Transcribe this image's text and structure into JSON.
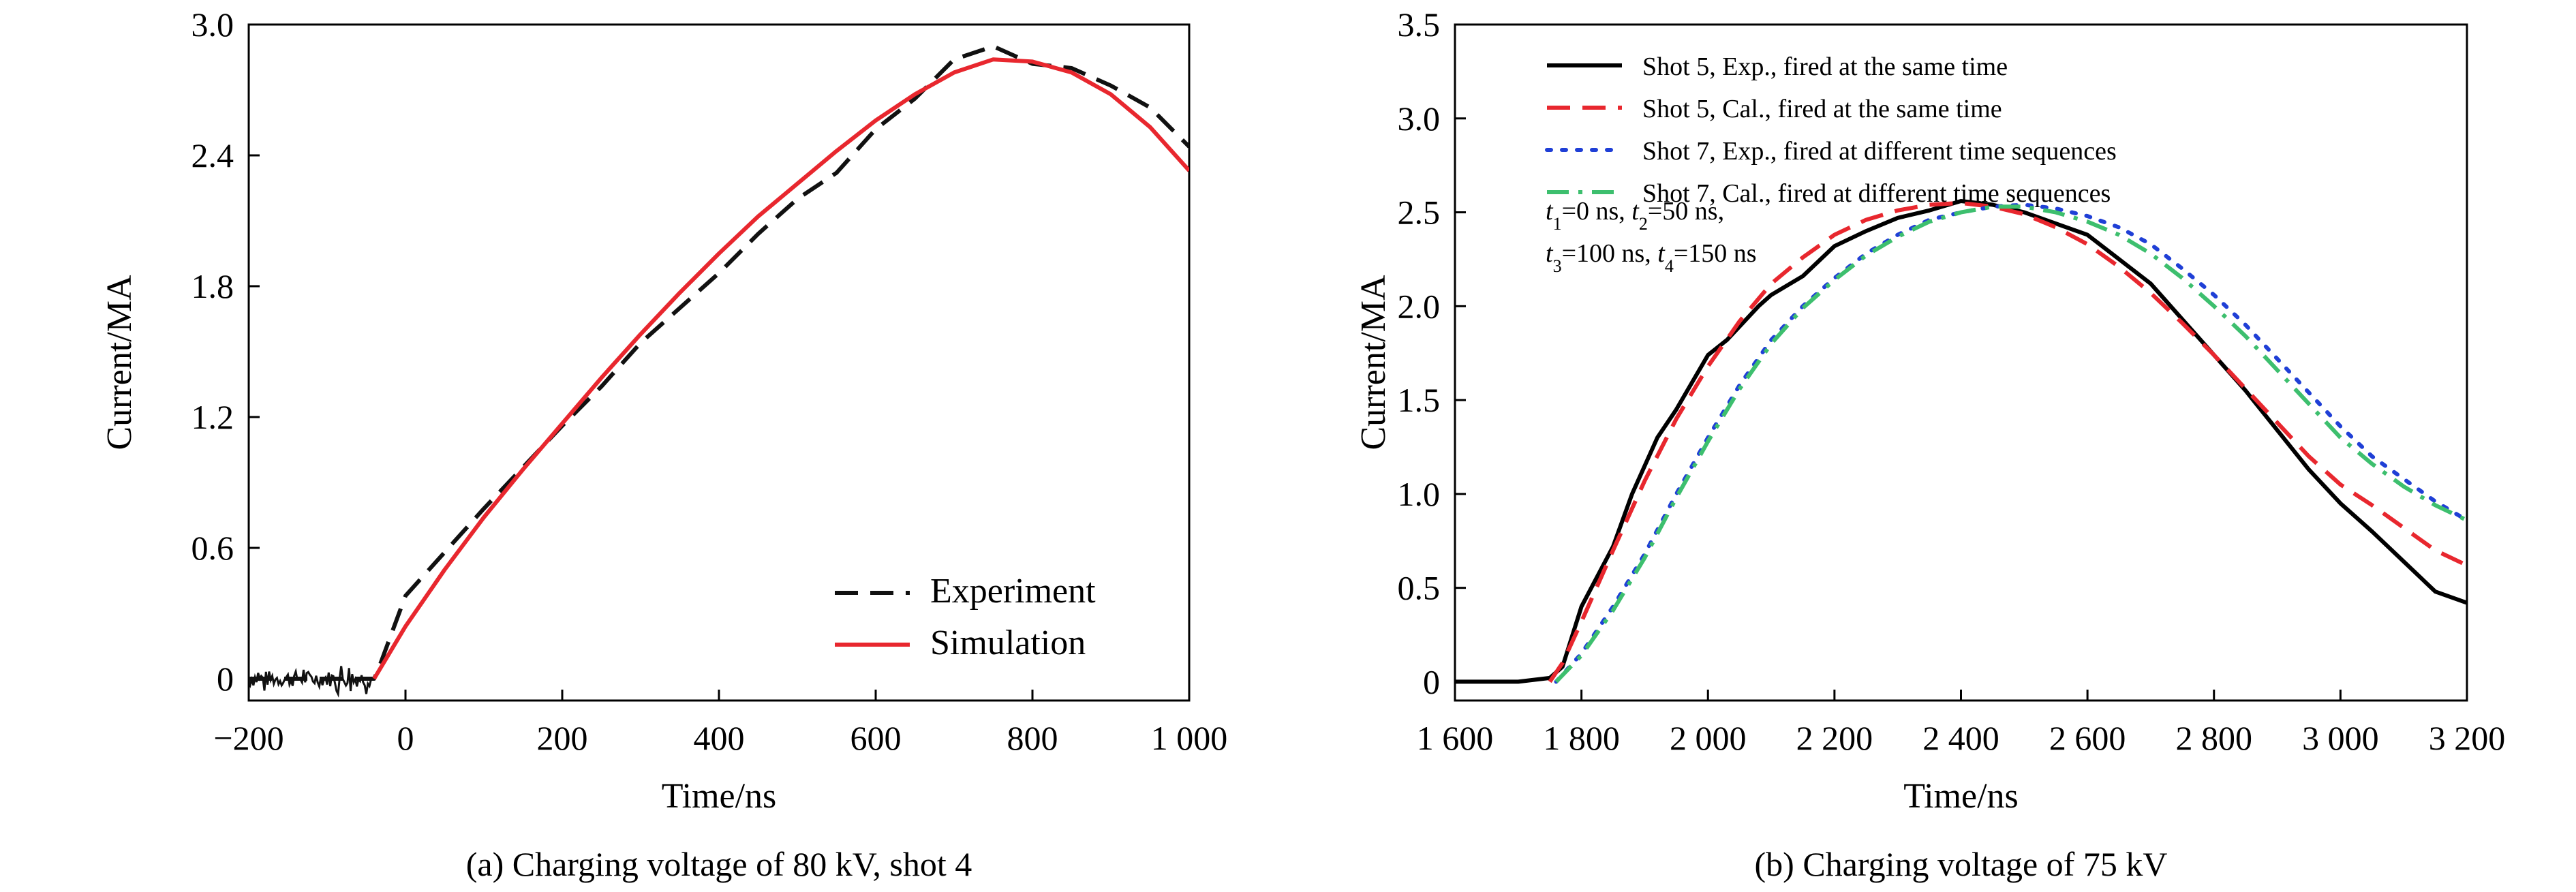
{
  "chart_data": [
    {
      "id": "a",
      "type": "line",
      "caption": "(a) Charging voltage of 80 kV, shot 4",
      "xlabel": "Time/ns",
      "ylabel": "Current/MA",
      "xlim": [
        -200,
        1000
      ],
      "ylim": [
        -0.1,
        3.0
      ],
      "xticks": [
        -200,
        0,
        200,
        400,
        600,
        800,
        1000
      ],
      "xtick_labels": [
        "−200",
        "0",
        "200",
        "400",
        "600",
        "800",
        "1 000"
      ],
      "yticks": [
        0,
        0.6,
        1.2,
        1.8,
        2.4,
        3.0
      ],
      "ytick_labels": [
        "0",
        "0.6",
        "1.2",
        "1.8",
        "2.4",
        "3.0"
      ],
      "legend_position": "bottom-right",
      "series": [
        {
          "name": "Experiment",
          "color": "#111111",
          "dash": "dashed",
          "x": [
            -200,
            -40,
            -35,
            0,
            50,
            100,
            150,
            200,
            250,
            300,
            350,
            400,
            450,
            500,
            550,
            600,
            650,
            700,
            750,
            800,
            850,
            900,
            950,
            1000
          ],
          "y": [
            0.0,
            0.0,
            0.04,
            0.38,
            0.58,
            0.78,
            0.97,
            1.16,
            1.34,
            1.54,
            1.7,
            1.86,
            2.04,
            2.2,
            2.32,
            2.52,
            2.66,
            2.84,
            2.9,
            2.82,
            2.8,
            2.72,
            2.62,
            2.44
          ]
        },
        {
          "name": "Simulation",
          "color": "#e8272e",
          "dash": "solid",
          "x": [
            -40,
            0,
            50,
            100,
            150,
            200,
            250,
            300,
            350,
            400,
            450,
            500,
            550,
            600,
            650,
            700,
            750,
            800,
            850,
            900,
            950,
            1000
          ],
          "y": [
            0.0,
            0.24,
            0.5,
            0.74,
            0.96,
            1.17,
            1.38,
            1.58,
            1.77,
            1.95,
            2.12,
            2.27,
            2.42,
            2.56,
            2.68,
            2.78,
            2.84,
            2.83,
            2.78,
            2.68,
            2.53,
            2.33
          ]
        }
      ],
      "noise_trace": {
        "color": "#111111",
        "x_range": [
          -200,
          -40
        ],
        "baseline": 0.0,
        "amplitude": 0.06
      }
    },
    {
      "id": "b",
      "type": "line",
      "caption": "(b) Charging voltage of 75 kV",
      "xlabel": "Time/ns",
      "ylabel": "Current/MA",
      "xlim": [
        1600,
        3200
      ],
      "ylim": [
        -0.1,
        3.5
      ],
      "xticks": [
        1600,
        1800,
        2000,
        2200,
        2400,
        2600,
        2800,
        3000,
        3200
      ],
      "xtick_labels": [
        "1 600",
        "1 800",
        "2 000",
        "2 200",
        "2 400",
        "2 600",
        "2 800",
        "3 000",
        "3 200"
      ],
      "yticks": [
        0,
        0.5,
        1.0,
        1.5,
        2.0,
        2.5,
        3.0,
        3.5
      ],
      "ytick_labels": [
        "0",
        "0.5",
        "1.0",
        "1.5",
        "2.0",
        "2.5",
        "3.0",
        "3.5"
      ],
      "legend_position": "top-left",
      "annotation": [
        {
          "parts": [
            [
              "t",
              "i"
            ],
            [
              "1",
              "sub"
            ],
            [
              "=0 ns, ",
              "n"
            ],
            [
              "t",
              "i"
            ],
            [
              "2",
              "sub"
            ],
            [
              "=50 ns,",
              "n"
            ]
          ]
        },
        {
          "parts": [
            [
              "t",
              "i"
            ],
            [
              "3",
              "sub"
            ],
            [
              "=100 ns, ",
              "n"
            ],
            [
              "t",
              "i"
            ],
            [
              "4",
              "sub"
            ],
            [
              "=150 ns",
              "n"
            ]
          ]
        }
      ],
      "series": [
        {
          "name": "Shot 5, Exp., fired at the same time",
          "color": "#000000",
          "dash": "solid",
          "x": [
            1600,
            1700,
            1750,
            1770,
            1800,
            1850,
            1880,
            1920,
            1950,
            2000,
            2030,
            2080,
            2100,
            2150,
            2200,
            2250,
            2300,
            2350,
            2400,
            2450,
            2500,
            2550,
            2600,
            2650,
            2700,
            2750,
            2800,
            2850,
            2900,
            2950,
            3000,
            3050,
            3100,
            3150,
            3200
          ],
          "y": [
            0.0,
            0.0,
            0.02,
            0.08,
            0.4,
            0.72,
            1.0,
            1.3,
            1.45,
            1.74,
            1.82,
            2.0,
            2.06,
            2.16,
            2.32,
            2.4,
            2.47,
            2.51,
            2.56,
            2.54,
            2.5,
            2.44,
            2.38,
            2.25,
            2.12,
            1.93,
            1.74,
            1.55,
            1.34,
            1.13,
            0.95,
            0.8,
            0.64,
            0.48,
            0.42
          ]
        },
        {
          "name": "Shot 5, Cal., fired at the same time",
          "color": "#e8272e",
          "dash": "dashed",
          "x": [
            1750,
            1770,
            1800,
            1850,
            1900,
            1950,
            2000,
            2050,
            2100,
            2150,
            2200,
            2250,
            2300,
            2350,
            2400,
            2450,
            2500,
            2550,
            2600,
            2650,
            2700,
            2750,
            2800,
            2850,
            2900,
            2950,
            3000,
            3050,
            3100,
            3150,
            3200
          ],
          "y": [
            0.0,
            0.1,
            0.32,
            0.7,
            1.07,
            1.4,
            1.68,
            1.92,
            2.12,
            2.26,
            2.38,
            2.46,
            2.51,
            2.54,
            2.55,
            2.53,
            2.49,
            2.42,
            2.33,
            2.21,
            2.07,
            1.91,
            1.74,
            1.56,
            1.38,
            1.2,
            1.05,
            0.94,
            0.82,
            0.7,
            0.62
          ]
        },
        {
          "name": "Shot 7, Exp., fired at different time sequences",
          "color": "#1f3fd6",
          "dash": "dotted",
          "x": [
            1760,
            1800,
            1850,
            1900,
            1950,
            2000,
            2050,
            2100,
            2150,
            2200,
            2250,
            2300,
            2350,
            2400,
            2450,
            2500,
            2550,
            2600,
            2650,
            2700,
            2750,
            2800,
            2850,
            2900,
            2950,
            3000,
            3050,
            3100,
            3150,
            3200
          ],
          "y": [
            0.0,
            0.15,
            0.4,
            0.68,
            1.0,
            1.3,
            1.58,
            1.82,
            2.0,
            2.15,
            2.28,
            2.38,
            2.46,
            2.5,
            2.53,
            2.54,
            2.52,
            2.48,
            2.42,
            2.33,
            2.2,
            2.06,
            1.9,
            1.72,
            1.54,
            1.36,
            1.2,
            1.08,
            0.96,
            0.86
          ]
        },
        {
          "name": "Shot 7, Cal., fired at different time sequences",
          "color": "#3dbf6e",
          "dash": "dashdot",
          "x": [
            1760,
            1800,
            1850,
            1900,
            1950,
            2000,
            2050,
            2100,
            2150,
            2200,
            2250,
            2300,
            2350,
            2400,
            2450,
            2500,
            2550,
            2600,
            2650,
            2700,
            2750,
            2800,
            2850,
            2900,
            2950,
            3000,
            3050,
            3100,
            3150,
            3200
          ],
          "y": [
            0.0,
            0.14,
            0.38,
            0.66,
            0.98,
            1.28,
            1.56,
            1.8,
            1.99,
            2.14,
            2.27,
            2.37,
            2.45,
            2.5,
            2.53,
            2.53,
            2.5,
            2.45,
            2.38,
            2.28,
            2.15,
            2.0,
            1.84,
            1.66,
            1.48,
            1.3,
            1.16,
            1.04,
            0.94,
            0.86
          ]
        }
      ]
    }
  ]
}
